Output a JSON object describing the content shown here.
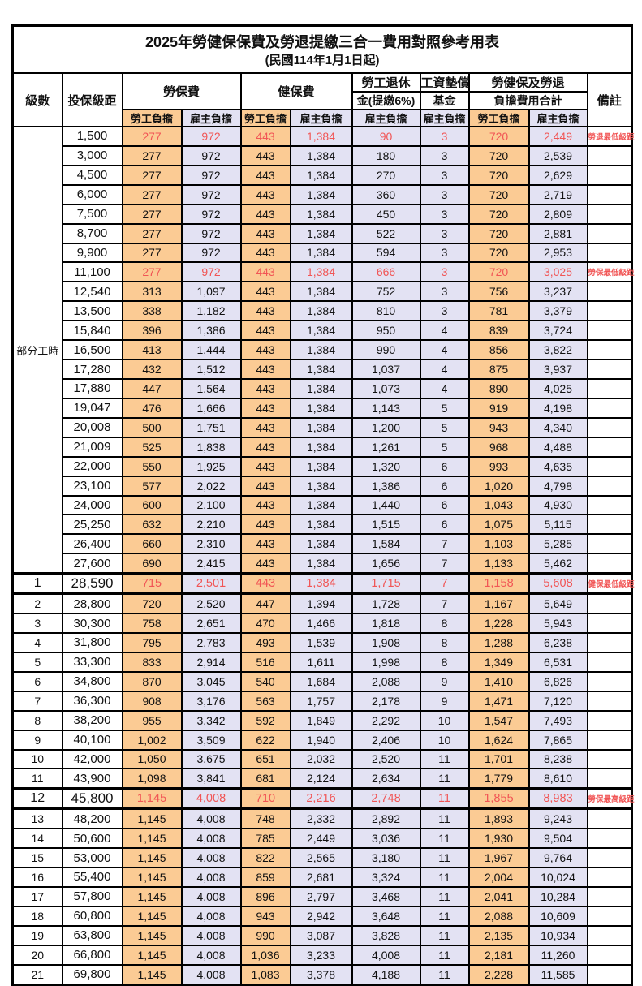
{
  "title": "2025年勞健保保費及勞退提繳三合一費用對照參考用表",
  "subtitle": "(民國114年1月1日起)",
  "header": {
    "level": "級數",
    "bracket": "投保級距",
    "labor_ins": "勞保費",
    "health_ins": "健保費",
    "pension_line1": "勞工退休",
    "pension_line2": "金(提繳6%)",
    "fund_line1": "工資墊償",
    "fund_line2": "基金",
    "total_line1": "勞健保及勞退",
    "total_line2": "負擔費用合計",
    "remark": "備註",
    "employee_label": "勞工負擔",
    "employer_label": "雇主負擔"
  },
  "part_time_label": "部分工時",
  "part_time_row_count": 23,
  "colors": {
    "employee_bg": "#FBCB94",
    "employer_bg": "#E3E2F3",
    "highlight_text": "#F15555",
    "border": "#000000"
  },
  "rows": [
    {
      "level": "",
      "bracket": "1,500",
      "li_emp": "277",
      "li_er": "972",
      "hi_emp": "443",
      "hi_er": "1,384",
      "pension": "90",
      "fund": "3",
      "tot_emp": "720",
      "tot_er": "2,449",
      "remark": "勞退最低級距",
      "hl": true,
      "big": false
    },
    {
      "level": "",
      "bracket": "3,000",
      "li_emp": "277",
      "li_er": "972",
      "hi_emp": "443",
      "hi_er": "1,384",
      "pension": "180",
      "fund": "3",
      "tot_emp": "720",
      "tot_er": "2,539",
      "remark": "",
      "hl": false,
      "big": false
    },
    {
      "level": "",
      "bracket": "4,500",
      "li_emp": "277",
      "li_er": "972",
      "hi_emp": "443",
      "hi_er": "1,384",
      "pension": "270",
      "fund": "3",
      "tot_emp": "720",
      "tot_er": "2,629",
      "remark": "",
      "hl": false,
      "big": false
    },
    {
      "level": "",
      "bracket": "6,000",
      "li_emp": "277",
      "li_er": "972",
      "hi_emp": "443",
      "hi_er": "1,384",
      "pension": "360",
      "fund": "3",
      "tot_emp": "720",
      "tot_er": "2,719",
      "remark": "",
      "hl": false,
      "big": false
    },
    {
      "level": "",
      "bracket": "7,500",
      "li_emp": "277",
      "li_er": "972",
      "hi_emp": "443",
      "hi_er": "1,384",
      "pension": "450",
      "fund": "3",
      "tot_emp": "720",
      "tot_er": "2,809",
      "remark": "",
      "hl": false,
      "big": false
    },
    {
      "level": "",
      "bracket": "8,700",
      "li_emp": "277",
      "li_er": "972",
      "hi_emp": "443",
      "hi_er": "1,384",
      "pension": "522",
      "fund": "3",
      "tot_emp": "720",
      "tot_er": "2,881",
      "remark": "",
      "hl": false,
      "big": false
    },
    {
      "level": "",
      "bracket": "9,900",
      "li_emp": "277",
      "li_er": "972",
      "hi_emp": "443",
      "hi_er": "1,384",
      "pension": "594",
      "fund": "3",
      "tot_emp": "720",
      "tot_er": "2,953",
      "remark": "",
      "hl": false,
      "big": false
    },
    {
      "level": "",
      "bracket": "11,100",
      "li_emp": "277",
      "li_er": "972",
      "hi_emp": "443",
      "hi_er": "1,384",
      "pension": "666",
      "fund": "3",
      "tot_emp": "720",
      "tot_er": "3,025",
      "remark": "勞保最低級距",
      "hl": true,
      "big": false
    },
    {
      "level": "",
      "bracket": "12,540",
      "li_emp": "313",
      "li_er": "1,097",
      "hi_emp": "443",
      "hi_er": "1,384",
      "pension": "752",
      "fund": "3",
      "tot_emp": "756",
      "tot_er": "3,237",
      "remark": "",
      "hl": false,
      "big": false
    },
    {
      "level": "",
      "bracket": "13,500",
      "li_emp": "338",
      "li_er": "1,182",
      "hi_emp": "443",
      "hi_er": "1,384",
      "pension": "810",
      "fund": "3",
      "tot_emp": "781",
      "tot_er": "3,379",
      "remark": "",
      "hl": false,
      "big": false
    },
    {
      "level": "",
      "bracket": "15,840",
      "li_emp": "396",
      "li_er": "1,386",
      "hi_emp": "443",
      "hi_er": "1,384",
      "pension": "950",
      "fund": "4",
      "tot_emp": "839",
      "tot_er": "3,724",
      "remark": "",
      "hl": false,
      "big": false
    },
    {
      "level": "",
      "bracket": "16,500",
      "li_emp": "413",
      "li_er": "1,444",
      "hi_emp": "443",
      "hi_er": "1,384",
      "pension": "990",
      "fund": "4",
      "tot_emp": "856",
      "tot_er": "3,822",
      "remark": "",
      "hl": false,
      "big": false
    },
    {
      "level": "",
      "bracket": "17,280",
      "li_emp": "432",
      "li_er": "1,512",
      "hi_emp": "443",
      "hi_er": "1,384",
      "pension": "1,037",
      "fund": "4",
      "tot_emp": "875",
      "tot_er": "3,937",
      "remark": "",
      "hl": false,
      "big": false
    },
    {
      "level": "",
      "bracket": "17,880",
      "li_emp": "447",
      "li_er": "1,564",
      "hi_emp": "443",
      "hi_er": "1,384",
      "pension": "1,073",
      "fund": "4",
      "tot_emp": "890",
      "tot_er": "4,025",
      "remark": "",
      "hl": false,
      "big": false
    },
    {
      "level": "",
      "bracket": "19,047",
      "li_emp": "476",
      "li_er": "1,666",
      "hi_emp": "443",
      "hi_er": "1,384",
      "pension": "1,143",
      "fund": "5",
      "tot_emp": "919",
      "tot_er": "4,198",
      "remark": "",
      "hl": false,
      "big": false
    },
    {
      "level": "",
      "bracket": "20,008",
      "li_emp": "500",
      "li_er": "1,751",
      "hi_emp": "443",
      "hi_er": "1,384",
      "pension": "1,200",
      "fund": "5",
      "tot_emp": "943",
      "tot_er": "4,340",
      "remark": "",
      "hl": false,
      "big": false
    },
    {
      "level": "",
      "bracket": "21,009",
      "li_emp": "525",
      "li_er": "1,838",
      "hi_emp": "443",
      "hi_er": "1,384",
      "pension": "1,261",
      "fund": "5",
      "tot_emp": "968",
      "tot_er": "4,488",
      "remark": "",
      "hl": false,
      "big": false
    },
    {
      "level": "",
      "bracket": "22,000",
      "li_emp": "550",
      "li_er": "1,925",
      "hi_emp": "443",
      "hi_er": "1,384",
      "pension": "1,320",
      "fund": "6",
      "tot_emp": "993",
      "tot_er": "4,635",
      "remark": "",
      "hl": false,
      "big": false
    },
    {
      "level": "",
      "bracket": "23,100",
      "li_emp": "577",
      "li_er": "2,022",
      "hi_emp": "443",
      "hi_er": "1,384",
      "pension": "1,386",
      "fund": "6",
      "tot_emp": "1,020",
      "tot_er": "4,798",
      "remark": "",
      "hl": false,
      "big": false
    },
    {
      "level": "",
      "bracket": "24,000",
      "li_emp": "600",
      "li_er": "2,100",
      "hi_emp": "443",
      "hi_er": "1,384",
      "pension": "1,440",
      "fund": "6",
      "tot_emp": "1,043",
      "tot_er": "4,930",
      "remark": "",
      "hl": false,
      "big": false
    },
    {
      "level": "",
      "bracket": "25,250",
      "li_emp": "632",
      "li_er": "2,210",
      "hi_emp": "443",
      "hi_er": "1,384",
      "pension": "1,515",
      "fund": "6",
      "tot_emp": "1,075",
      "tot_er": "5,115",
      "remark": "",
      "hl": false,
      "big": false
    },
    {
      "level": "",
      "bracket": "26,400",
      "li_emp": "660",
      "li_er": "2,310",
      "hi_emp": "443",
      "hi_er": "1,384",
      "pension": "1,584",
      "fund": "7",
      "tot_emp": "1,103",
      "tot_er": "5,285",
      "remark": "",
      "hl": false,
      "big": false
    },
    {
      "level": "",
      "bracket": "27,600",
      "li_emp": "690",
      "li_er": "2,415",
      "hi_emp": "443",
      "hi_er": "1,384",
      "pension": "1,656",
      "fund": "7",
      "tot_emp": "1,133",
      "tot_er": "5,462",
      "remark": "",
      "hl": false,
      "big": false
    },
    {
      "level": "1",
      "bracket": "28,590",
      "li_emp": "715",
      "li_er": "2,501",
      "hi_emp": "443",
      "hi_er": "1,384",
      "pension": "1,715",
      "fund": "7",
      "tot_emp": "1,158",
      "tot_er": "5,608",
      "remark": "健保最低級距",
      "hl": true,
      "big": true
    },
    {
      "level": "2",
      "bracket": "28,800",
      "li_emp": "720",
      "li_er": "2,520",
      "hi_emp": "447",
      "hi_er": "1,394",
      "pension": "1,728",
      "fund": "7",
      "tot_emp": "1,167",
      "tot_er": "5,649",
      "remark": "",
      "hl": false,
      "big": false
    },
    {
      "level": "3",
      "bracket": "30,300",
      "li_emp": "758",
      "li_er": "2,651",
      "hi_emp": "470",
      "hi_er": "1,466",
      "pension": "1,818",
      "fund": "8",
      "tot_emp": "1,228",
      "tot_er": "5,943",
      "remark": "",
      "hl": false,
      "big": false
    },
    {
      "level": "4",
      "bracket": "31,800",
      "li_emp": "795",
      "li_er": "2,783",
      "hi_emp": "493",
      "hi_er": "1,539",
      "pension": "1,908",
      "fund": "8",
      "tot_emp": "1,288",
      "tot_er": "6,238",
      "remark": "",
      "hl": false,
      "big": false
    },
    {
      "level": "5",
      "bracket": "33,300",
      "li_emp": "833",
      "li_er": "2,914",
      "hi_emp": "516",
      "hi_er": "1,611",
      "pension": "1,998",
      "fund": "8",
      "tot_emp": "1,349",
      "tot_er": "6,531",
      "remark": "",
      "hl": false,
      "big": false
    },
    {
      "level": "6",
      "bracket": "34,800",
      "li_emp": "870",
      "li_er": "3,045",
      "hi_emp": "540",
      "hi_er": "1,684",
      "pension": "2,088",
      "fund": "9",
      "tot_emp": "1,410",
      "tot_er": "6,826",
      "remark": "",
      "hl": false,
      "big": false
    },
    {
      "level": "7",
      "bracket": "36,300",
      "li_emp": "908",
      "li_er": "3,176",
      "hi_emp": "563",
      "hi_er": "1,757",
      "pension": "2,178",
      "fund": "9",
      "tot_emp": "1,471",
      "tot_er": "7,120",
      "remark": "",
      "hl": false,
      "big": false
    },
    {
      "level": "8",
      "bracket": "38,200",
      "li_emp": "955",
      "li_er": "3,342",
      "hi_emp": "592",
      "hi_er": "1,849",
      "pension": "2,292",
      "fund": "10",
      "tot_emp": "1,547",
      "tot_er": "7,493",
      "remark": "",
      "hl": false,
      "big": false
    },
    {
      "level": "9",
      "bracket": "40,100",
      "li_emp": "1,002",
      "li_er": "3,509",
      "hi_emp": "622",
      "hi_er": "1,940",
      "pension": "2,406",
      "fund": "10",
      "tot_emp": "1,624",
      "tot_er": "7,865",
      "remark": "",
      "hl": false,
      "big": false
    },
    {
      "level": "10",
      "bracket": "42,000",
      "li_emp": "1,050",
      "li_er": "3,675",
      "hi_emp": "651",
      "hi_er": "2,032",
      "pension": "2,520",
      "fund": "11",
      "tot_emp": "1,701",
      "tot_er": "8,238",
      "remark": "",
      "hl": false,
      "big": false
    },
    {
      "level": "11",
      "bracket": "43,900",
      "li_emp": "1,098",
      "li_er": "3,841",
      "hi_emp": "681",
      "hi_er": "2,124",
      "pension": "2,634",
      "fund": "11",
      "tot_emp": "1,779",
      "tot_er": "8,610",
      "remark": "",
      "hl": false,
      "big": false
    },
    {
      "level": "12",
      "bracket": "45,800",
      "li_emp": "1,145",
      "li_er": "4,008",
      "hi_emp": "710",
      "hi_er": "2,216",
      "pension": "2,748",
      "fund": "11",
      "tot_emp": "1,855",
      "tot_er": "8,983",
      "remark": "勞保最高級距",
      "hl": true,
      "big": true
    },
    {
      "level": "13",
      "bracket": "48,200",
      "li_emp": "1,145",
      "li_er": "4,008",
      "hi_emp": "748",
      "hi_er": "2,332",
      "pension": "2,892",
      "fund": "11",
      "tot_emp": "1,893",
      "tot_er": "9,243",
      "remark": "",
      "hl": false,
      "big": false
    },
    {
      "level": "14",
      "bracket": "50,600",
      "li_emp": "1,145",
      "li_er": "4,008",
      "hi_emp": "785",
      "hi_er": "2,449",
      "pension": "3,036",
      "fund": "11",
      "tot_emp": "1,930",
      "tot_er": "9,504",
      "remark": "",
      "hl": false,
      "big": false
    },
    {
      "level": "15",
      "bracket": "53,000",
      "li_emp": "1,145",
      "li_er": "4,008",
      "hi_emp": "822",
      "hi_er": "2,565",
      "pension": "3,180",
      "fund": "11",
      "tot_emp": "1,967",
      "tot_er": "9,764",
      "remark": "",
      "hl": false,
      "big": false
    },
    {
      "level": "16",
      "bracket": "55,400",
      "li_emp": "1,145",
      "li_er": "4,008",
      "hi_emp": "859",
      "hi_er": "2,681",
      "pension": "3,324",
      "fund": "11",
      "tot_emp": "2,004",
      "tot_er": "10,024",
      "remark": "",
      "hl": false,
      "big": false
    },
    {
      "level": "17",
      "bracket": "57,800",
      "li_emp": "1,145",
      "li_er": "4,008",
      "hi_emp": "896",
      "hi_er": "2,797",
      "pension": "3,468",
      "fund": "11",
      "tot_emp": "2,041",
      "tot_er": "10,284",
      "remark": "",
      "hl": false,
      "big": false
    },
    {
      "level": "18",
      "bracket": "60,800",
      "li_emp": "1,145",
      "li_er": "4,008",
      "hi_emp": "943",
      "hi_er": "2,942",
      "pension": "3,648",
      "fund": "11",
      "tot_emp": "2,088",
      "tot_er": "10,609",
      "remark": "",
      "hl": false,
      "big": false
    },
    {
      "level": "19",
      "bracket": "63,800",
      "li_emp": "1,145",
      "li_er": "4,008",
      "hi_emp": "990",
      "hi_er": "3,087",
      "pension": "3,828",
      "fund": "11",
      "tot_emp": "2,135",
      "tot_er": "10,934",
      "remark": "",
      "hl": false,
      "big": false
    },
    {
      "level": "20",
      "bracket": "66,800",
      "li_emp": "1,145",
      "li_er": "4,008",
      "hi_emp": "1,036",
      "hi_er": "3,233",
      "pension": "4,008",
      "fund": "11",
      "tot_emp": "2,181",
      "tot_er": "11,260",
      "remark": "",
      "hl": false,
      "big": false
    },
    {
      "level": "21",
      "bracket": "69,800",
      "li_emp": "1,145",
      "li_er": "4,008",
      "hi_emp": "1,083",
      "hi_er": "3,378",
      "pension": "4,188",
      "fund": "11",
      "tot_emp": "2,228",
      "tot_er": "11,585",
      "remark": "",
      "hl": false,
      "big": false
    }
  ]
}
